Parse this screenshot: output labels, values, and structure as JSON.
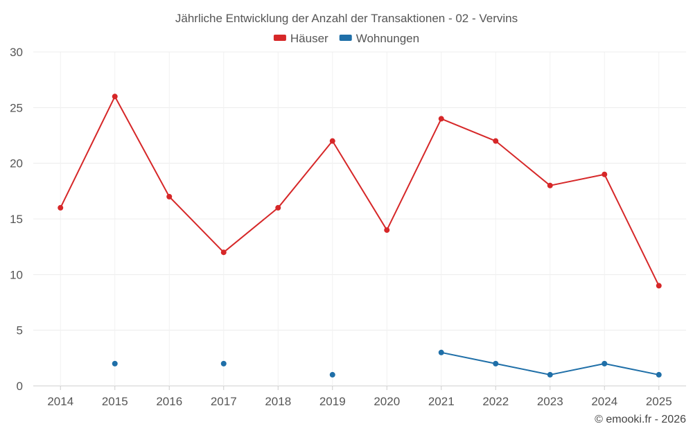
{
  "chart_data": {
    "type": "line",
    "title": "Jährliche Entwicklung der Anzahl der Transaktionen - 02 - Vervins",
    "xlabel": "",
    "ylabel": "",
    "ylim": [
      0,
      30
    ],
    "y_ticks": [
      0,
      5,
      10,
      15,
      20,
      25,
      30
    ],
    "categories": [
      "2014",
      "2015",
      "2016",
      "2017",
      "2018",
      "2019",
      "2020",
      "2021",
      "2022",
      "2023",
      "2024",
      "2025"
    ],
    "grid": true,
    "legend_position": "top-center",
    "series": [
      {
        "name": "Häuser",
        "color": "#d62728",
        "values": [
          16,
          26,
          17,
          12,
          16,
          22,
          14,
          24,
          22,
          18,
          19,
          9
        ]
      },
      {
        "name": "Wohnungen",
        "color": "#1f6fa8",
        "values": [
          null,
          2,
          null,
          2,
          null,
          1,
          null,
          3,
          2,
          1,
          2,
          1
        ]
      }
    ]
  },
  "footer": {
    "credit": "© emooki.fr - 2026"
  }
}
